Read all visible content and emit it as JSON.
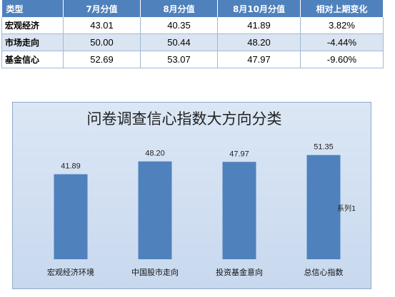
{
  "table": {
    "headers": [
      "类型",
      "7月分值",
      "8月分值",
      "8月10月分值",
      "相对上期变化"
    ],
    "rows": [
      [
        "宏观经济",
        "43.01",
        "40.35",
        "41.89",
        "3.82%"
      ],
      [
        "市场走向",
        "50.00",
        "50.44",
        "48.20",
        "-4.44%"
      ],
      [
        "基金信心",
        "52.69",
        "53.07",
        "47.97",
        "-9.60%"
      ]
    ]
  },
  "chart_data": {
    "type": "bar",
    "title": "问卷调查信心指数大方向分类",
    "categories": [
      "宏观经济环境",
      "中国股市走向",
      "投资基金意向",
      "总信心指数"
    ],
    "series": [
      {
        "name": "系列1",
        "values": [
          41.89,
          48.2,
          47.97,
          51.35
        ],
        "color": "#4f81bd"
      }
    ],
    "value_labels": [
      "41.89",
      "48.20",
      "47.97",
      "51.35"
    ],
    "xlabel": "",
    "ylabel": "",
    "ylim": [
      0,
      60
    ],
    "grid": false,
    "legend": "right",
    "background": "#d3e0f1"
  }
}
